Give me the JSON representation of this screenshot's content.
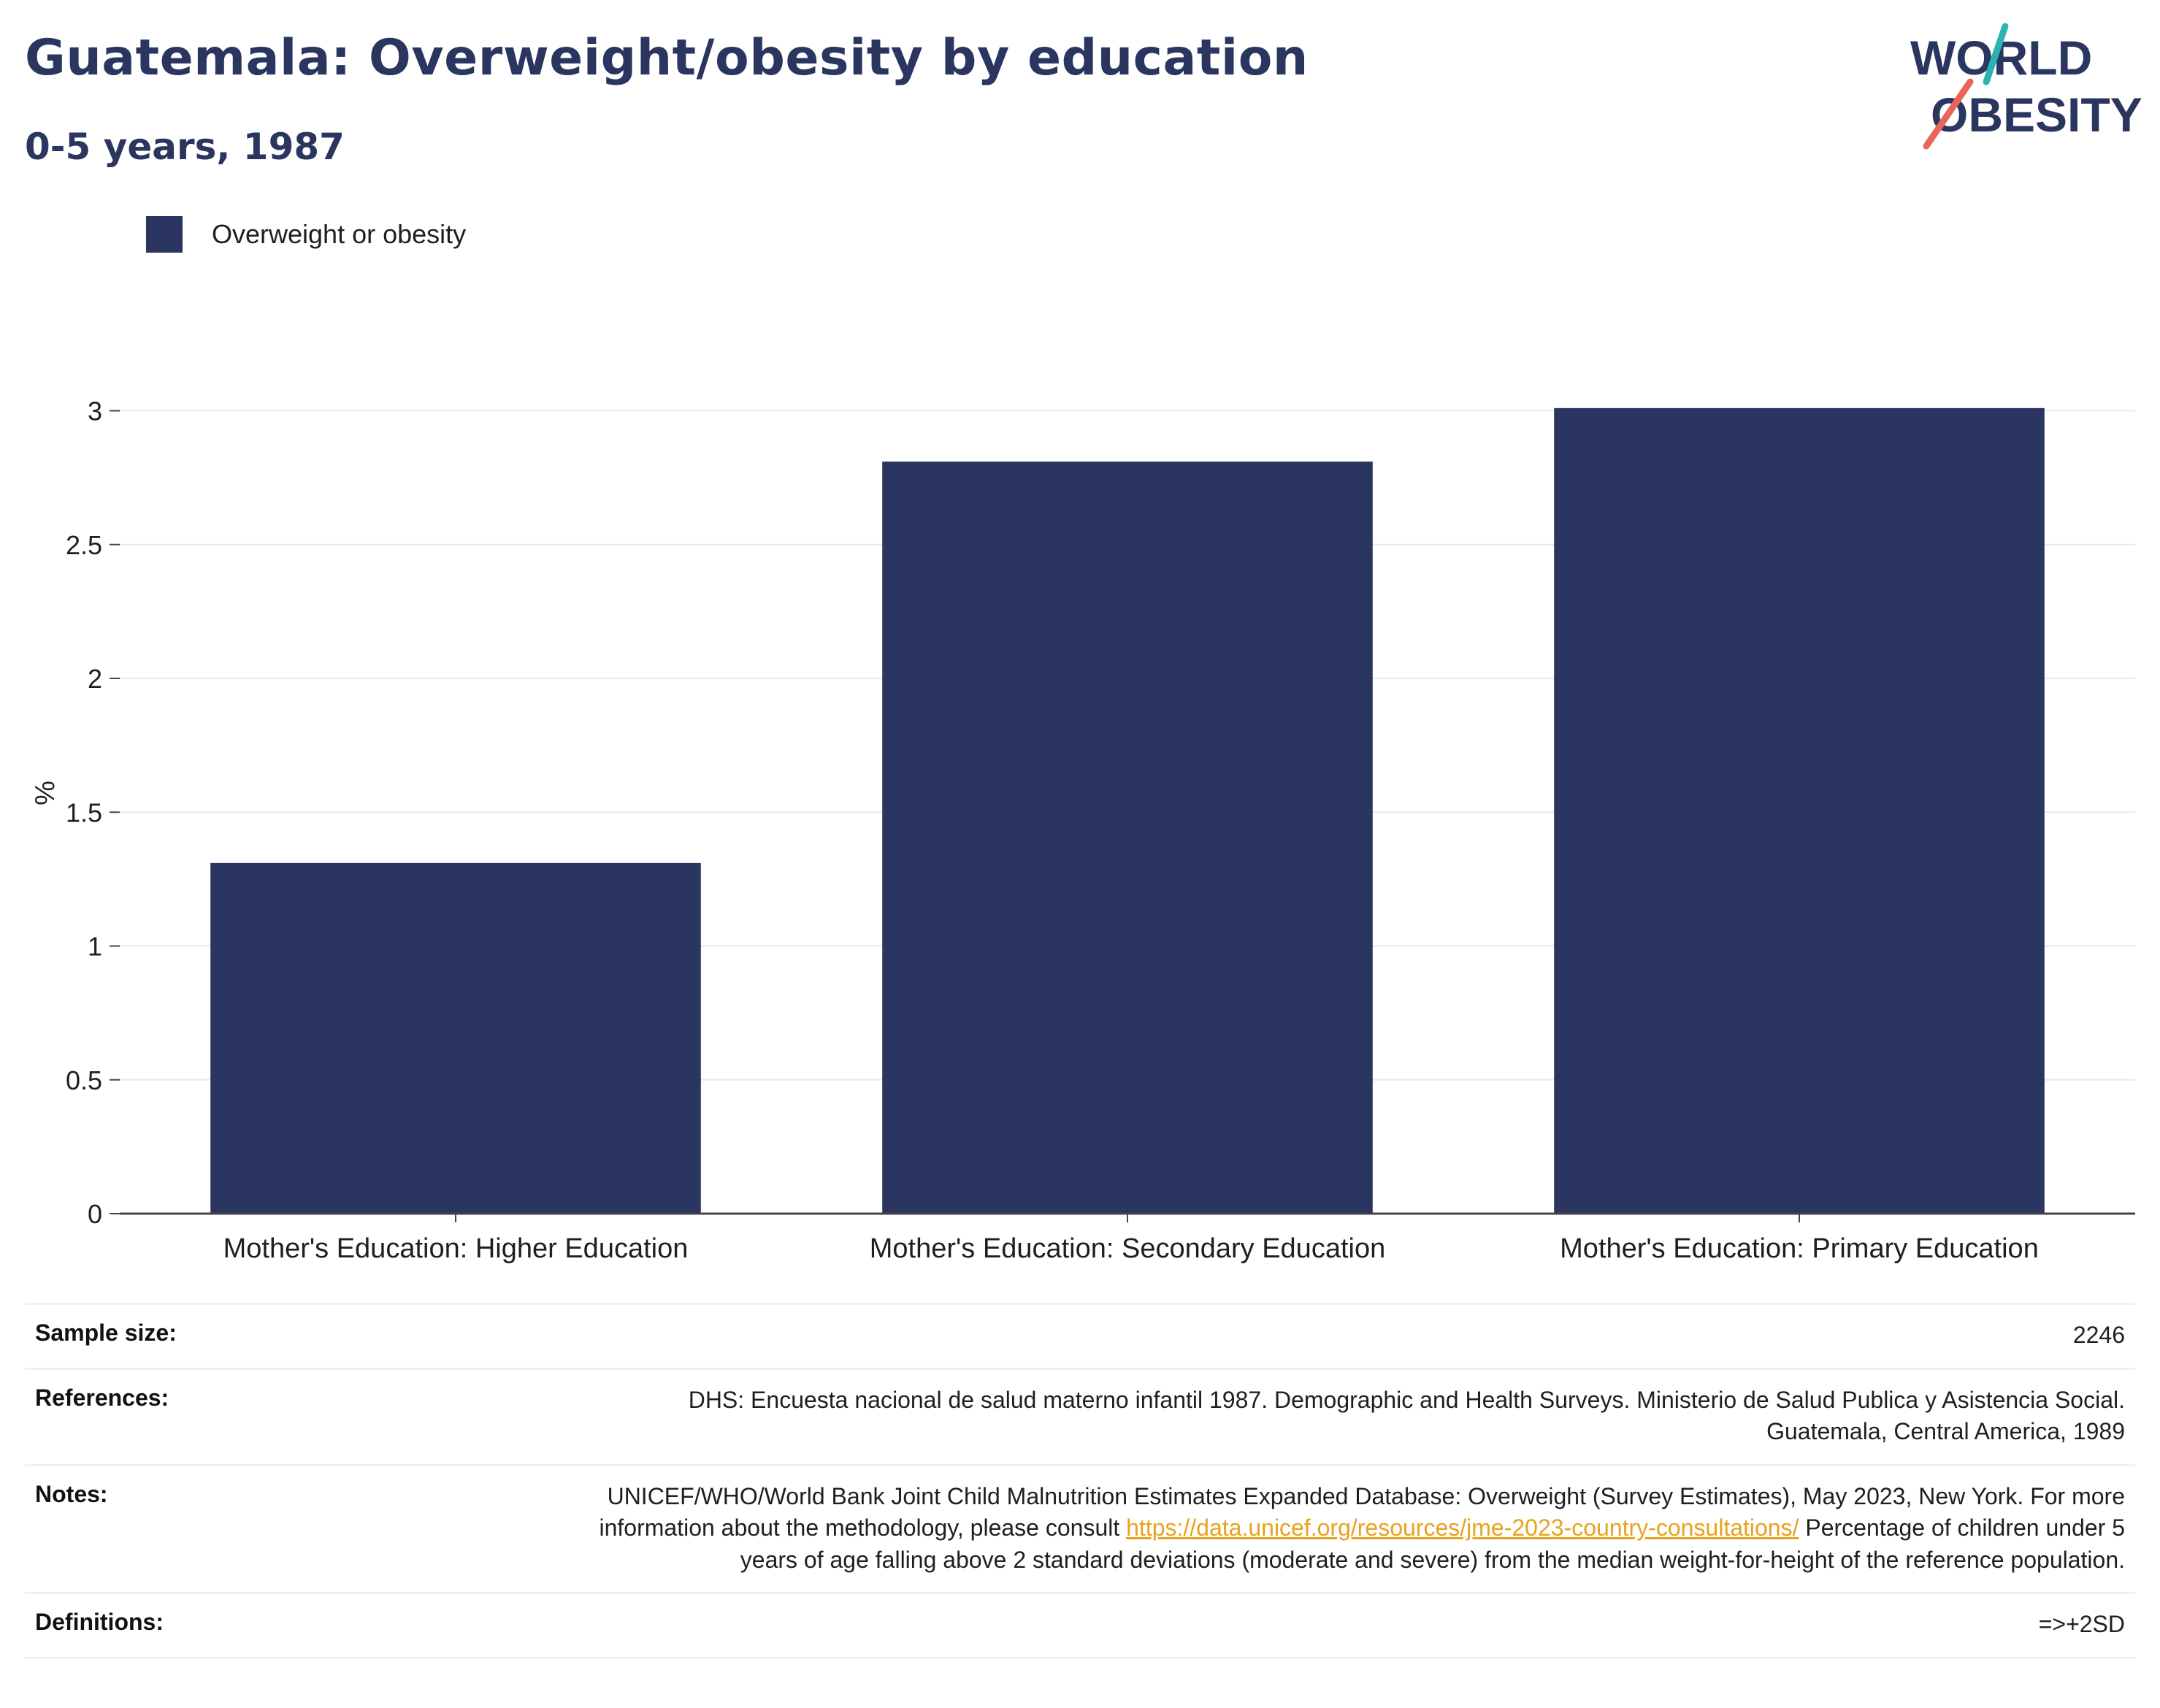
{
  "header": {
    "title": "Guatemala: Overweight/obesity by education",
    "subtitle": "0-5 years, 1987"
  },
  "logo": {
    "line1": "WORLD",
    "line2": "OBESITY",
    "colors": {
      "text": "#2a3560",
      "teal": "#2bb3b1",
      "coral": "#e8655a"
    }
  },
  "legend": {
    "label": "Overweight or obesity",
    "color": "#2a3661"
  },
  "chart_data": {
    "type": "bar",
    "categories": [
      "Mother's Education: Higher Education",
      "Mother's Education: Secondary Education",
      "Mother's Education: Primary Education"
    ],
    "series": [
      {
        "name": "Overweight or obesity",
        "values": [
          1.31,
          2.81,
          3.01
        ],
        "color": "#2a3661"
      }
    ],
    "ylabel": "%",
    "ylim": [
      0,
      3.2
    ],
    "yticks": [
      "0",
      "0.5",
      "1",
      "1.5",
      "2",
      "2.5",
      "3"
    ],
    "grid": true,
    "legend_position": "top-left"
  },
  "meta": {
    "sample_size": {
      "label": "Sample size:",
      "value": "2246"
    },
    "references": {
      "label": "References:",
      "value": "DHS: Encuesta nacional de salud materno infantil 1987. Demographic and Health Surveys. Ministerio de Salud Publica y Asistencia Social. Guatemala, Central America, 1989"
    },
    "notes": {
      "label": "Notes:",
      "text_before": "UNICEF/WHO/World Bank Joint Child Malnutrition Estimates Expanded Database: Overweight (Survey Estimates), May 2023, New York. For more information about the methodology, please consult",
      "link": "https://data.unicef.org/resources/jme-2023-country-consultations/",
      "text_after": "Percentage of children under 5 years of age falling above 2 standard deviations (moderate and severe) from the median weight-for-height of the reference population."
    },
    "definitions": {
      "label": "Definitions:",
      "value": "=>+2SD"
    }
  }
}
